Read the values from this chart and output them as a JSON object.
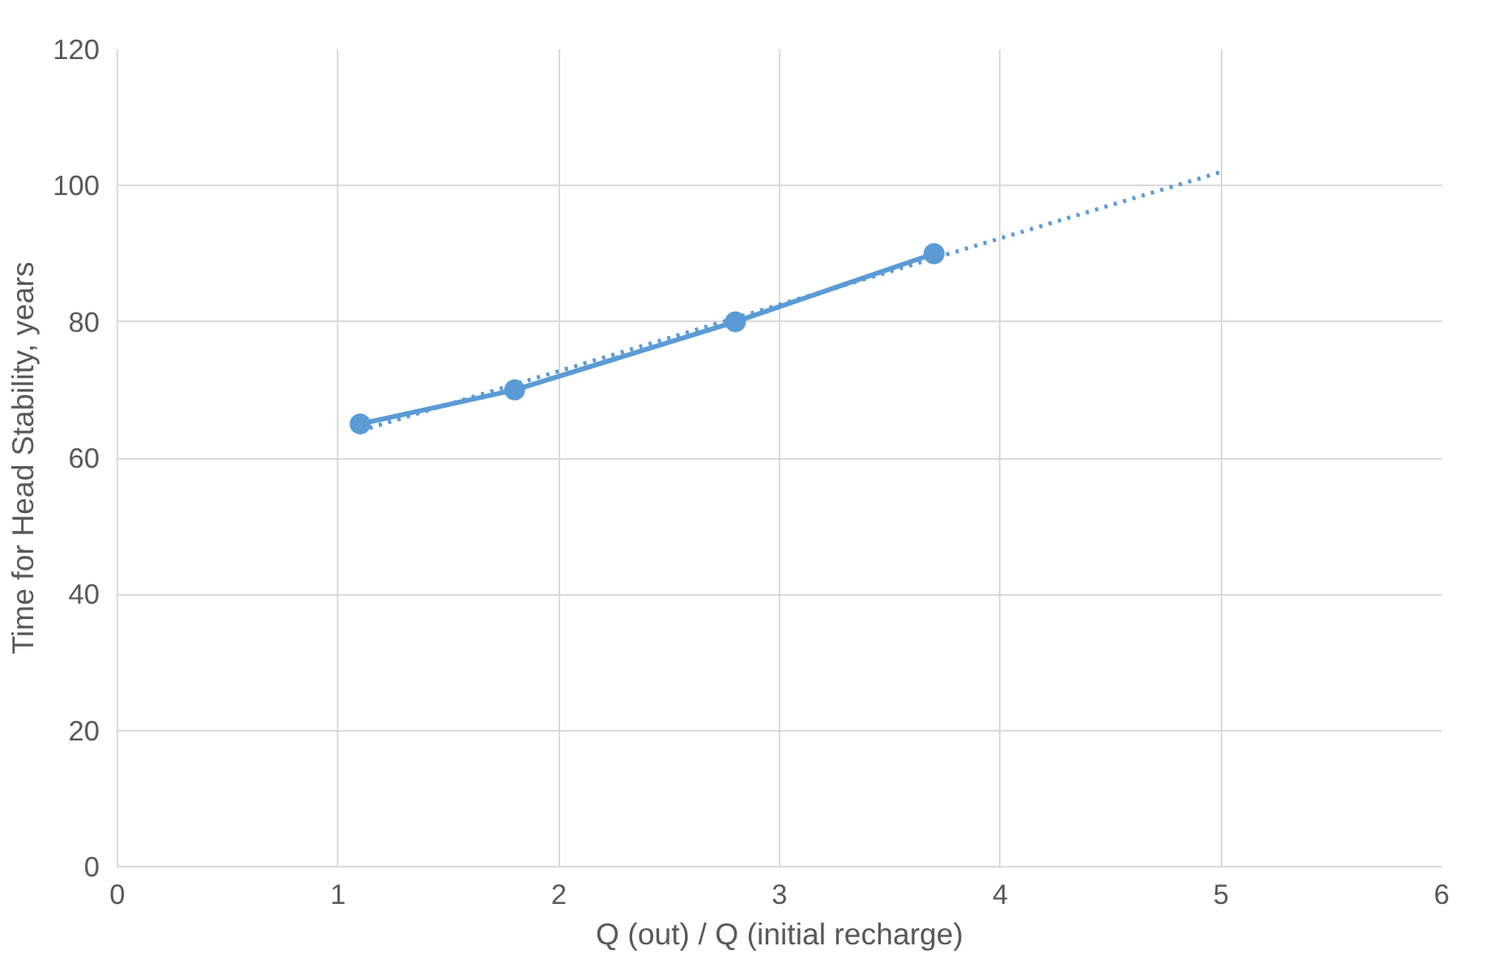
{
  "chart_data": {
    "type": "line",
    "xlabel": "Q (out) / Q (initial recharge)",
    "ylabel": "Time for Head Stability, years",
    "x": [
      1.1,
      1.8,
      2.8,
      3.7
    ],
    "series": [
      {
        "color": "#5b9bd5",
        "values": [
          65,
          70,
          80,
          90
        ],
        "marker": "circle",
        "line_style": "solid"
      },
      {
        "type": "line",
        "color": "#5b9bd5",
        "x": [
          1.1,
          5
        ],
        "values": [
          64,
          102
        ],
        "marker": "none",
        "line_style": "dotted"
      }
    ],
    "xlim": [
      0,
      6
    ],
    "xticks": [
      0,
      1,
      2,
      3,
      4,
      5,
      6
    ],
    "ylim": [
      0,
      120
    ],
    "yticks": [
      0,
      20,
      40,
      60,
      80,
      100,
      120
    ],
    "grid": true
  }
}
